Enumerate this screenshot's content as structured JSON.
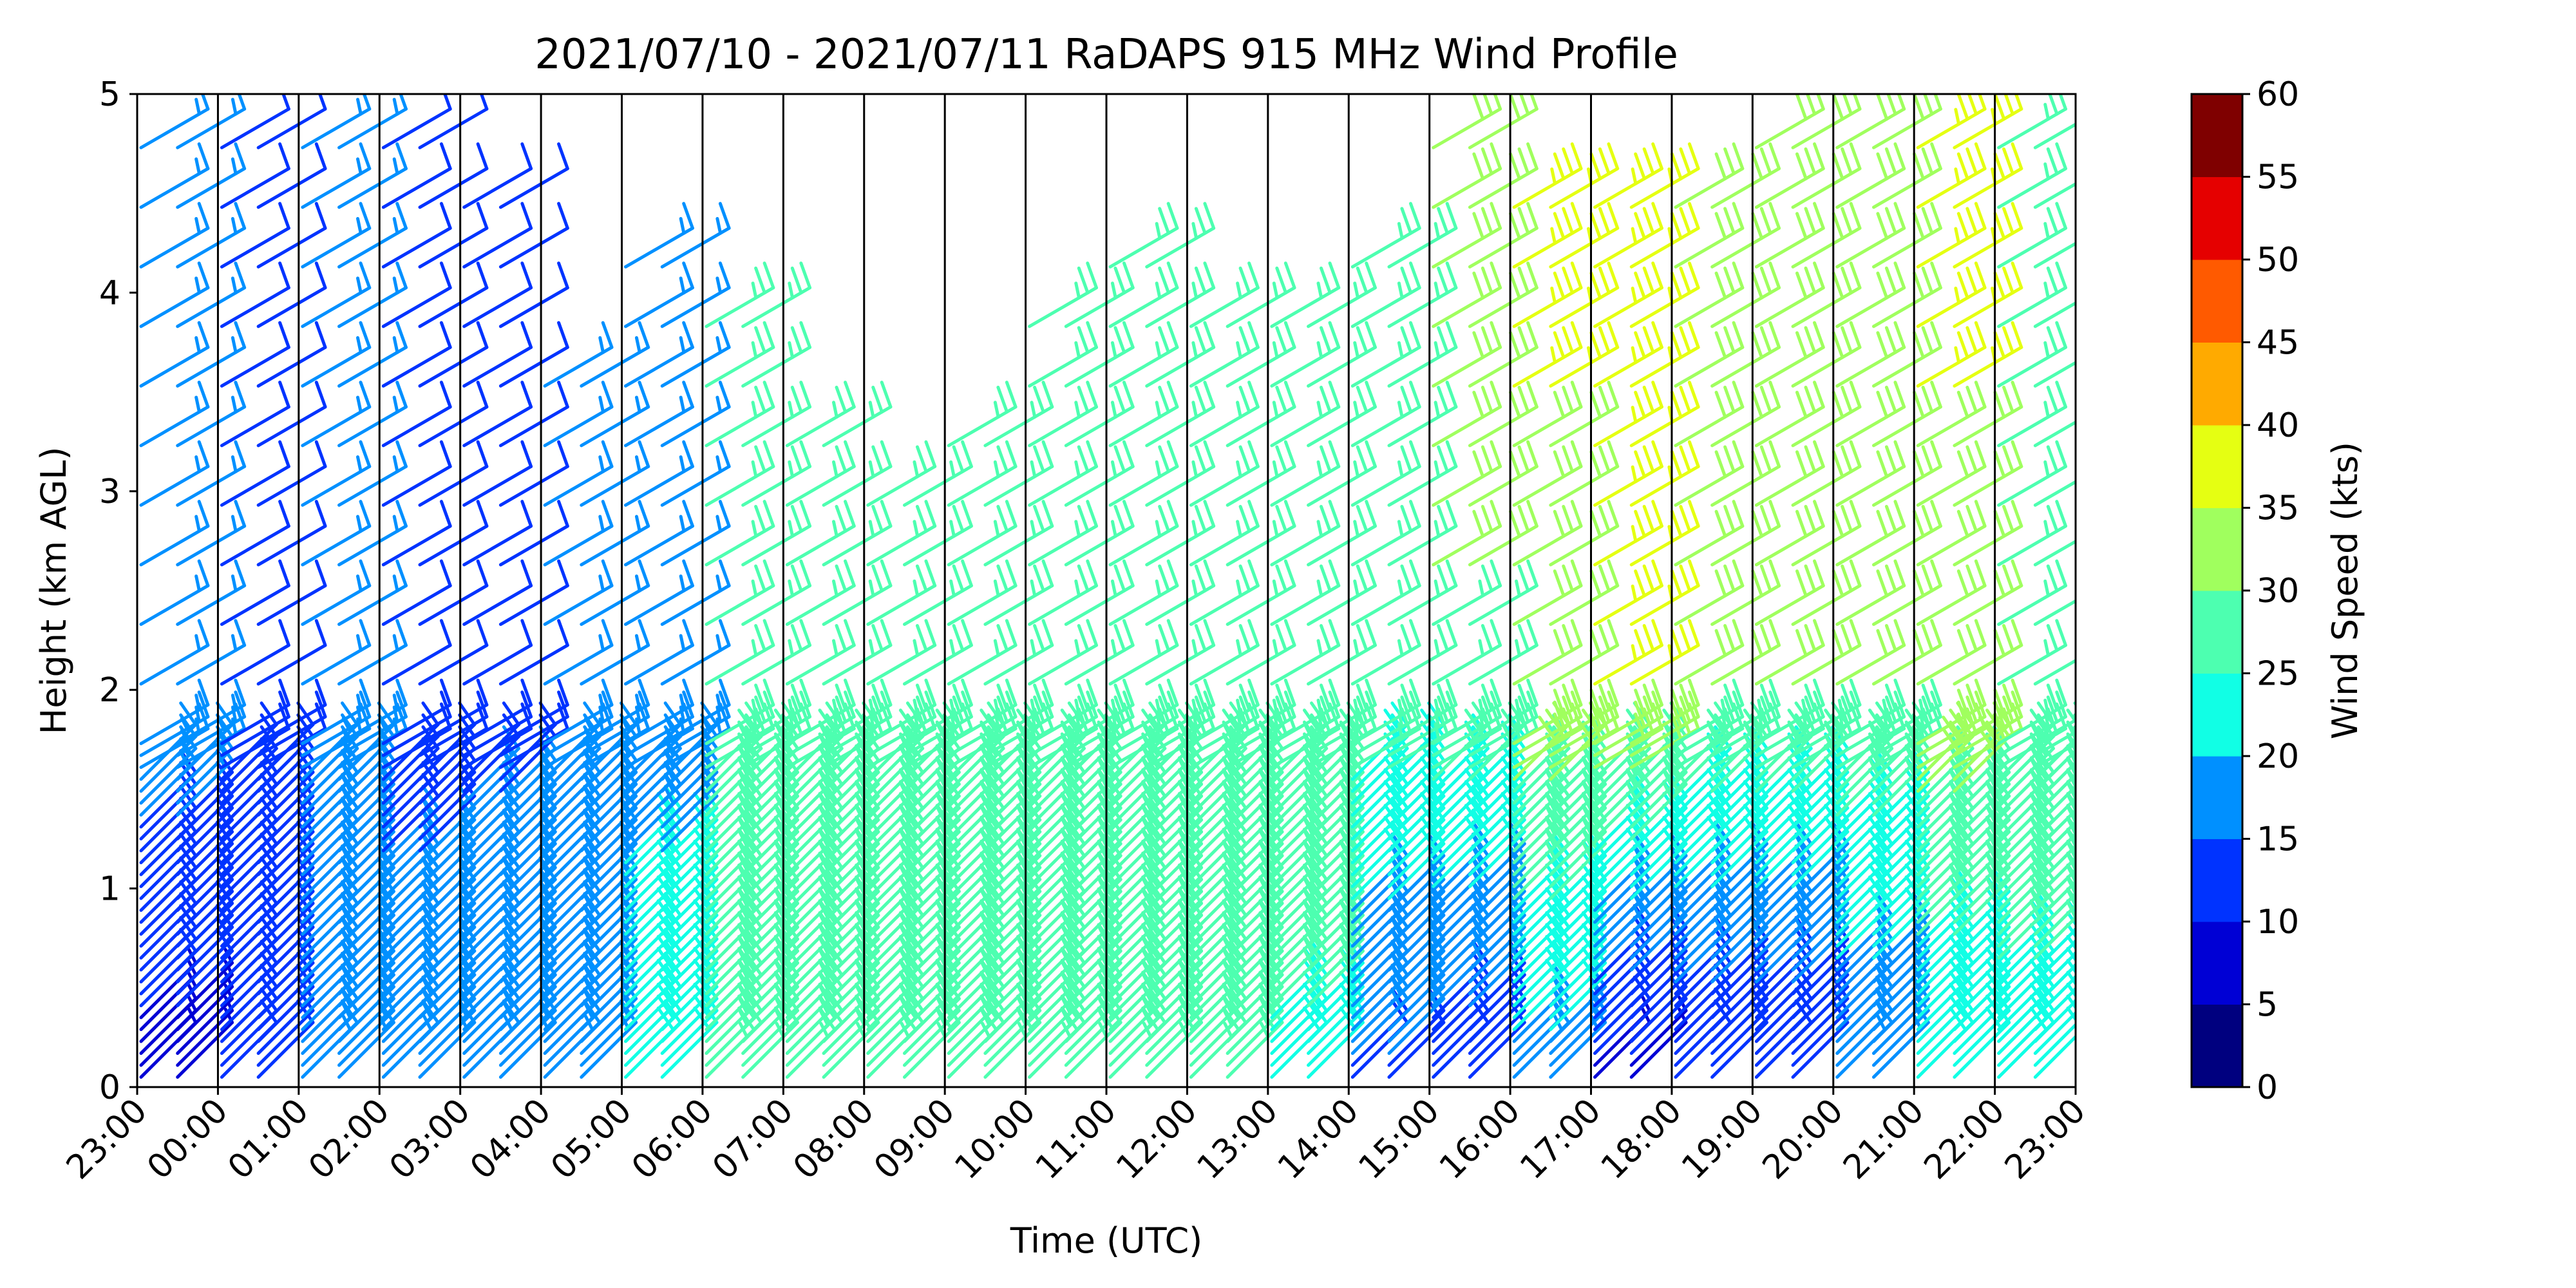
{
  "chart_data": {
    "type": "wind_barbs",
    "title": "2021/07/10 - 2021/07/11 RaDAPS 915 MHz Wind Profile",
    "xlabel": "Time (UTC)",
    "ylabel": "Height (km AGL)",
    "x_ticks": [
      "23:00",
      "00:00",
      "01:00",
      "02:00",
      "03:00",
      "04:00",
      "05:00",
      "06:00",
      "07:00",
      "08:00",
      "09:00",
      "10:00",
      "11:00",
      "12:00",
      "13:00",
      "14:00",
      "15:00",
      "16:00",
      "17:00",
      "18:00",
      "19:00",
      "20:00",
      "21:00",
      "22:00",
      "23:00"
    ],
    "y_ticks": [
      "0",
      "1",
      "2",
      "3",
      "4",
      "5"
    ],
    "ylim": [
      0,
      5
    ],
    "grid": "vertical lines at each hour",
    "colorbar": {
      "label": "Wind Speed (kts)",
      "ticks": [
        "0",
        "5",
        "10",
        "15",
        "20",
        "25",
        "30",
        "35",
        "40",
        "45",
        "50",
        "55",
        "60"
      ],
      "range": [
        0,
        60
      ],
      "colors": [
        "#00007f",
        "#0000d5",
        "#0033ff",
        "#0090ff",
        "#11ffe5",
        "#4dffb0",
        "#a0ff5e",
        "#e5ff12",
        "#ffaa00",
        "#ff5a00",
        "#e50000",
        "#7f0000"
      ]
    },
    "profiles": [
      {
        "time": "23:00",
        "max_height_km": 5.0,
        "low_kts": 8,
        "high_kts": 20
      },
      {
        "time": "00:00",
        "max_height_km": 5.0,
        "low_kts": 12,
        "high_kts": 14
      },
      {
        "time": "01:00",
        "max_height_km": 5.0,
        "low_kts": 18,
        "high_kts": 16
      },
      {
        "time": "02:00",
        "max_height_km": 5.0,
        "low_kts": 16,
        "high_kts": 14
      },
      {
        "time": "03:00",
        "max_height_km": 4.7,
        "low_kts": 20,
        "high_kts": 12
      },
      {
        "time": "04:00",
        "max_height_km": 3.8,
        "low_kts": 20,
        "high_kts": 16
      },
      {
        "time": "05:00",
        "max_height_km": 4.4,
        "low_kts": 22,
        "high_kts": 18
      },
      {
        "time": "06:00",
        "max_height_km": 4.1,
        "low_kts": 28,
        "high_kts": 30
      },
      {
        "time": "07:00",
        "max_height_km": 3.5,
        "low_kts": 26,
        "high_kts": 30
      },
      {
        "time": "08:00",
        "max_height_km": 3.2,
        "low_kts": 26,
        "high_kts": 28
      },
      {
        "time": "09:00",
        "max_height_km": 3.3,
        "low_kts": 28,
        "high_kts": 30
      },
      {
        "time": "10:00",
        "max_height_km": 3.9,
        "low_kts": 26,
        "high_kts": 30
      },
      {
        "time": "11:00",
        "max_height_km": 4.3,
        "low_kts": 28,
        "high_kts": 30
      },
      {
        "time": "12:00",
        "max_height_km": 4.1,
        "low_kts": 26,
        "high_kts": 30
      },
      {
        "time": "13:00",
        "max_height_km": 4.0,
        "low_kts": 24,
        "high_kts": 30
      },
      {
        "time": "14:00",
        "max_height_km": 4.2,
        "low_kts": 14,
        "high_kts": 30
      },
      {
        "time": "15:00",
        "max_height_km": 5.0,
        "low_kts": 12,
        "high_kts": 32
      },
      {
        "time": "16:00",
        "max_height_km": 4.7,
        "low_kts": 18,
        "high_kts": 36
      },
      {
        "time": "17:00",
        "max_height_km": 4.6,
        "low_kts": 8,
        "high_kts": 40
      },
      {
        "time": "18:00",
        "max_height_km": 4.6,
        "low_kts": 10,
        "high_kts": 34
      },
      {
        "time": "19:00",
        "max_height_km": 5.0,
        "low_kts": 10,
        "high_kts": 34
      },
      {
        "time": "20:00",
        "max_height_km": 5.0,
        "low_kts": 16,
        "high_kts": 32
      },
      {
        "time": "21:00",
        "max_height_km": 5.0,
        "low_kts": 20,
        "high_kts": 36
      },
      {
        "time": "22:00",
        "max_height_km": 5.0,
        "low_kts": 24,
        "high_kts": 28
      }
    ]
  }
}
